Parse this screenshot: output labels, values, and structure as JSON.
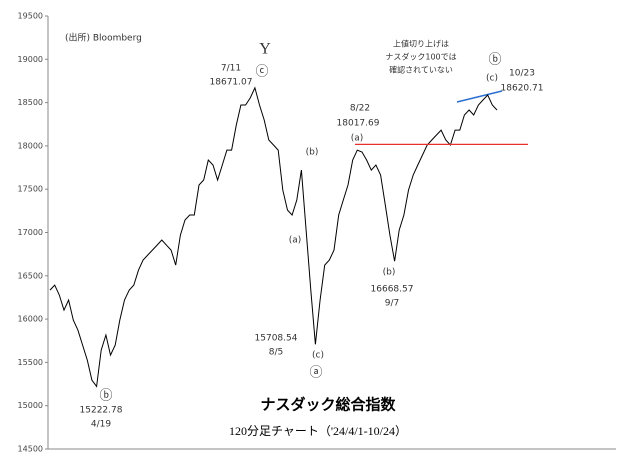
{
  "chart_data": {
    "type": "line",
    "title": "ナスダック総合指数",
    "subtitle": "120分足チャート（'24/4/1-10/24）",
    "source": "(出所) Bloomberg",
    "color": "#000000",
    "ylim": [
      14500,
      19500
    ],
    "yticks": [
      14500,
      15000,
      15500,
      16000,
      16500,
      17000,
      17500,
      18000,
      18500,
      19000,
      19500
    ],
    "values": [
      16335,
      16393,
      16278,
      16104,
      16220,
      15989,
      15873,
      15700,
      15527,
      15296,
      15223,
      15642,
      15816,
      15584,
      15700,
      15989,
      16220,
      16335,
      16393,
      16566,
      16682,
      16740,
      16797,
      16855,
      16913,
      16855,
      16797,
      16624,
      16970,
      17144,
      17202,
      17202,
      17548,
      17606,
      17837,
      17779,
      17606,
      17779,
      17952,
      17952,
      18241,
      18472,
      18472,
      18553,
      18671,
      18472,
      18299,
      18068,
      18010,
      17952,
      17490,
      17259,
      17202,
      17375,
      17721,
      17028,
      16335,
      15709,
      16220,
      16624,
      16682,
      16797,
      17202,
      17375,
      17548,
      17837,
      17952,
      17929,
      17837,
      17721,
      17779,
      17664,
      17317,
      16970,
      16669,
      17028,
      17202,
      17490,
      17664,
      17779,
      17895,
      18010,
      18068,
      18126,
      18183,
      18068,
      18010,
      18183,
      18183,
      18357,
      18414,
      18357,
      18472,
      18530,
      18588,
      18472,
      18414
    ],
    "wave_labels": [
      "Y",
      "ⓒ",
      "(b)",
      "(a)",
      "(c)",
      "ⓐ",
      "ⓑ",
      "(a)",
      "(b)",
      "(c)",
      "ⓑ"
    ],
    "price_labels": [
      {
        "date": "7/11",
        "value": 18671.07
      },
      {
        "date": "8/5",
        "value": 15708.54
      },
      {
        "date": "4/19",
        "value": 15222.78
      },
      {
        "date": "9/7",
        "value": 16668.57
      },
      {
        "date": "10/23",
        "value": 18620.71
      }
    ],
    "resistance": {
      "date": "8/22",
      "value": 18017.69,
      "color": "#e8302a"
    },
    "note": {
      "lines": [
        "上値切り上げは",
        "ナスダック100では",
        "確認されていない"
      ],
      "color": "#1a5ab5"
    }
  }
}
